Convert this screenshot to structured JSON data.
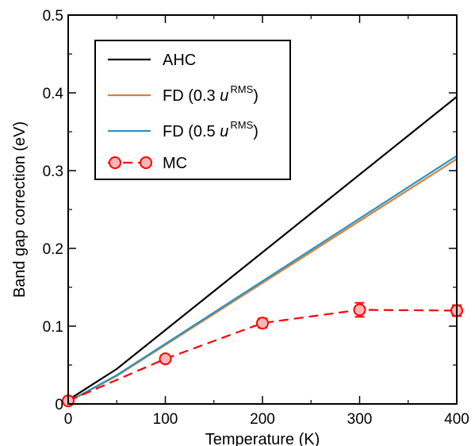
{
  "chart_data": {
    "type": "line",
    "xlabel": "Temperature (K)",
    "ylabel": "Band gap correction (eV)",
    "xlim": [
      0,
      400
    ],
    "ylim": [
      0,
      0.5
    ],
    "x_ticks": [
      0,
      100,
      200,
      300,
      400
    ],
    "y_ticks": [
      0,
      0.1,
      0.2,
      0.3,
      0.4,
      0.5
    ],
    "x_tick_labels": [
      "0",
      "100",
      "200",
      "300",
      "400"
    ],
    "y_tick_labels": [
      "0",
      "0.1",
      "0.2",
      "0.3",
      "0.4",
      "0.5"
    ],
    "grid": false,
    "legend_position": "top-left",
    "series": [
      {
        "name": "AHC",
        "color": "#000000",
        "style": "solid",
        "x": [
          0,
          50,
          400
        ],
        "y": [
          0.005,
          0.045,
          0.395
        ]
      },
      {
        "name": "FD (0.3 uRMS)",
        "legend_parts": [
          "FD (0.3 ",
          "u",
          "RMS",
          ")"
        ],
        "color": "#d7813a",
        "style": "solid",
        "x": [
          0,
          50,
          400
        ],
        "y": [
          0.003,
          0.036,
          0.315
        ]
      },
      {
        "name": "FD (0.5 uRMS)",
        "legend_parts": [
          "FD (0.5 ",
          "u",
          "RMS",
          ")"
        ],
        "color": "#2a93c4",
        "style": "solid",
        "x": [
          0,
          50,
          400
        ],
        "y": [
          0.003,
          0.037,
          0.319
        ]
      },
      {
        "name": "MC",
        "color": "#ff0000",
        "marker_fill": "#f7b8b8",
        "style": "dashed",
        "marker": "circle",
        "x": [
          0,
          100,
          200,
          300,
          400
        ],
        "y": [
          0.004,
          0.058,
          0.104,
          0.121,
          0.12
        ],
        "error": [
          0.003,
          0.003,
          0.006,
          0.009,
          0.007
        ]
      }
    ]
  }
}
